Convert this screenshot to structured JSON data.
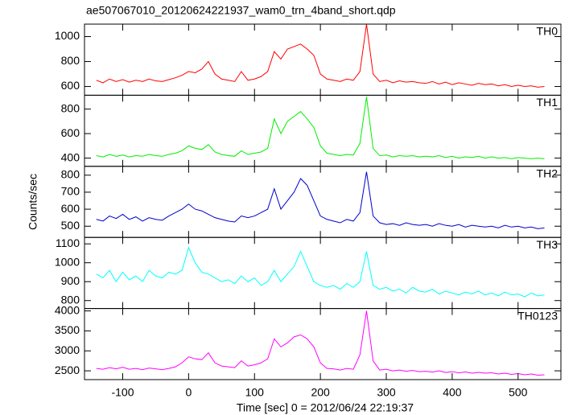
{
  "chart_data": {
    "type": "line",
    "title": "ae507067010_20120624221937_wam0_trn_4band_short.qdp",
    "xlabel": "Time [sec]  0 = 2012/06/24 22:19:37",
    "ylabel": "Counts/sec",
    "xlim": [
      -158,
      565
    ],
    "xticks": [
      -100,
      0,
      100,
      200,
      300,
      400,
      500
    ],
    "x": [
      -140,
      -130,
      -120,
      -110,
      -100,
      -90,
      -80,
      -70,
      -60,
      -50,
      -40,
      -30,
      -20,
      -10,
      0,
      10,
      20,
      30,
      40,
      50,
      60,
      70,
      80,
      90,
      100,
      110,
      120,
      130,
      140,
      150,
      160,
      170,
      180,
      190,
      200,
      210,
      220,
      230,
      240,
      250,
      260,
      270,
      280,
      290,
      300,
      310,
      320,
      330,
      340,
      350,
      360,
      370,
      380,
      390,
      400,
      410,
      420,
      430,
      440,
      450,
      460,
      470,
      480,
      490,
      500,
      510,
      520,
      530,
      540
    ],
    "series": [
      {
        "name": "TH0",
        "color": "#ff0000",
        "ylim": [
          530,
          1100
        ],
        "yticks": [
          600,
          800,
          1000
        ],
        "values": [
          650,
          630,
          660,
          640,
          655,
          635,
          650,
          640,
          660,
          645,
          640,
          655,
          670,
          690,
          720,
          710,
          740,
          800,
          700,
          660,
          650,
          640,
          720,
          650,
          660,
          680,
          720,
          880,
          820,
          900,
          920,
          940,
          900,
          850,
          700,
          660,
          650,
          640,
          660,
          650,
          720,
          1100,
          700,
          640,
          650,
          630,
          645,
          635,
          640,
          630,
          625,
          640,
          620,
          635,
          615,
          630,
          620,
          610,
          625,
          615,
          620,
          605,
          615,
          600,
          610,
          600,
          605,
          595,
          600
        ]
      },
      {
        "name": "TH1",
        "color": "#00ee00",
        "ylim": [
          333,
          913
        ],
        "yticks": [
          400,
          600,
          800
        ],
        "values": [
          420,
          410,
          430,
          415,
          425,
          410,
          420,
          415,
          430,
          420,
          415,
          430,
          440,
          460,
          500,
          480,
          470,
          510,
          450,
          430,
          420,
          415,
          460,
          430,
          440,
          450,
          480,
          720,
          600,
          700,
          740,
          780,
          720,
          650,
          500,
          440,
          430,
          420,
          430,
          425,
          520,
          900,
          480,
          420,
          425,
          410,
          420,
          415,
          420,
          410,
          415,
          410,
          420,
          405,
          415,
          400,
          410,
          405,
          415,
          400,
          410,
          400,
          405,
          395,
          405,
          400,
          395,
          400,
          395
        ]
      },
      {
        "name": "TH2",
        "color": "#0000cc",
        "ylim": [
          434,
          852
        ],
        "yticks": [
          500,
          600,
          700,
          800
        ],
        "values": [
          540,
          530,
          560,
          545,
          570,
          540,
          555,
          530,
          550,
          540,
          535,
          560,
          580,
          600,
          630,
          600,
          590,
          570,
          550,
          540,
          530,
          525,
          560,
          550,
          560,
          580,
          600,
          720,
          600,
          650,
          700,
          780,
          740,
          650,
          560,
          540,
          530,
          520,
          540,
          530,
          580,
          820,
          560,
          520,
          510,
          515,
          505,
          520,
          510,
          505,
          510,
          500,
          515,
          505,
          500,
          510,
          495,
          505,
          500,
          495,
          500,
          490,
          505,
          495,
          500,
          490,
          495,
          485,
          490
        ]
      },
      {
        "name": "TH3",
        "color": "#00ffff",
        "ylim": [
          758,
          1134
        ],
        "yticks": [
          800,
          900,
          1000,
          1100
        ],
        "values": [
          940,
          920,
          960,
          900,
          950,
          910,
          930,
          900,
          960,
          930,
          920,
          950,
          940,
          960,
          1080,
          1000,
          950,
          940,
          920,
          900,
          910,
          890,
          930,
          900,
          920,
          880,
          900,
          960,
          900,
          940,
          980,
          1060,
          980,
          900,
          880,
          870,
          880,
          860,
          890,
          870,
          900,
          1060,
          880,
          860,
          870,
          850,
          860,
          840,
          870,
          850,
          845,
          860,
          835,
          850,
          840,
          830,
          845,
          835,
          850,
          830,
          840,
          825,
          845,
          830,
          835,
          820,
          840,
          825,
          830
        ]
      },
      {
        "name": "TH0123",
        "color": "#ff00ff",
        "ylim": [
          2280,
          4060
        ],
        "yticks": [
          2500,
          3000,
          3500,
          4000
        ],
        "values": [
          2560,
          2540,
          2580,
          2550,
          2590,
          2540,
          2560,
          2530,
          2570,
          2550,
          2530,
          2560,
          2600,
          2700,
          2850,
          2800,
          2780,
          2950,
          2700,
          2620,
          2600,
          2580,
          2750,
          2620,
          2650,
          2700,
          2800,
          3300,
          3100,
          3200,
          3350,
          3400,
          3300,
          3100,
          2700,
          2560,
          2550,
          2520,
          2560,
          2540,
          2900,
          4000,
          2750,
          2520,
          2540,
          2500,
          2520,
          2490,
          2510,
          2480,
          2490,
          2470,
          2500,
          2460,
          2480,
          2450,
          2470,
          2440,
          2460,
          2440,
          2450,
          2420,
          2440,
          2410,
          2430,
          2400,
          2420,
          2390,
          2400
        ]
      }
    ]
  }
}
